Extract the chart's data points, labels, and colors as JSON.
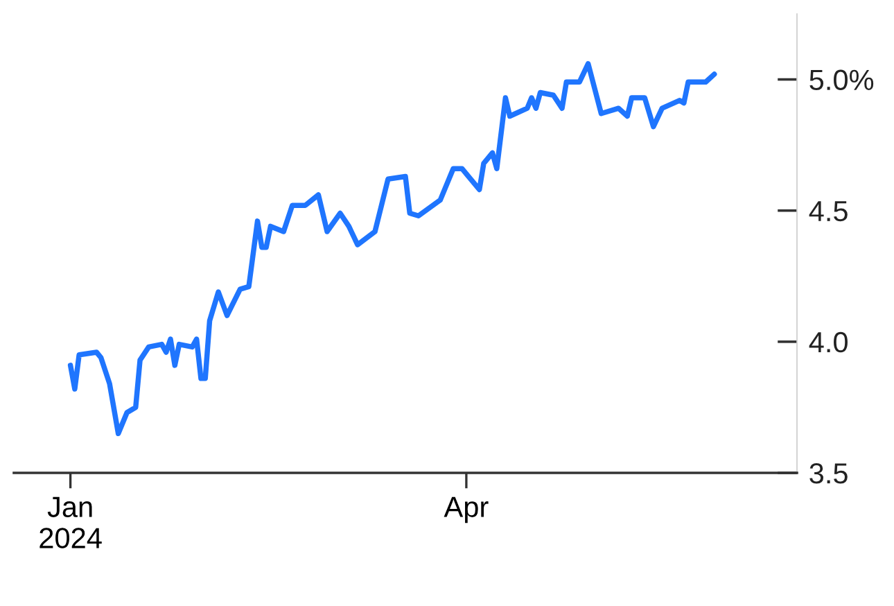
{
  "chart_data": {
    "type": "line",
    "x": [
      "2024-01-01",
      "2024-01-02",
      "2024-01-03",
      "2024-01-07",
      "2024-01-08",
      "2024-01-10",
      "2024-01-12",
      "2024-01-14",
      "2024-01-16",
      "2024-01-17",
      "2024-01-19",
      "2024-01-22",
      "2024-01-23",
      "2024-01-24",
      "2024-01-25",
      "2024-01-26",
      "2024-01-29",
      "2024-01-30",
      "2024-01-31",
      "2024-02-01",
      "2024-02-02",
      "2024-02-04",
      "2024-02-06",
      "2024-02-09",
      "2024-02-11",
      "2024-02-13",
      "2024-02-14",
      "2024-02-15",
      "2024-02-16",
      "2024-02-19",
      "2024-02-21",
      "2024-02-24",
      "2024-02-27",
      "2024-02-29",
      "2024-03-03",
      "2024-03-05",
      "2024-03-07",
      "2024-03-11",
      "2024-03-14",
      "2024-03-18",
      "2024-03-19",
      "2024-03-21",
      "2024-03-26",
      "2024-03-29",
      "2024-03-31",
      "2024-04-04",
      "2024-04-05",
      "2024-04-07",
      "2024-04-08",
      "2024-04-10",
      "2024-04-11",
      "2024-04-15",
      "2024-04-16",
      "2024-04-17",
      "2024-04-18",
      "2024-04-21",
      "2024-04-23",
      "2024-04-24",
      "2024-04-27",
      "2024-04-29",
      "2024-05-02",
      "2024-05-06",
      "2024-05-08",
      "2024-05-09",
      "2024-05-12",
      "2024-05-14",
      "2024-05-16",
      "2024-05-20",
      "2024-05-21",
      "2024-05-22",
      "2024-05-26",
      "2024-05-28"
    ],
    "series": [
      {
        "color": "#1f75fe",
        "values": [
          3.91,
          3.82,
          3.95,
          3.96,
          3.94,
          3.84,
          3.65,
          3.73,
          3.75,
          3.93,
          3.98,
          3.99,
          3.96,
          4.01,
          3.91,
          3.99,
          3.98,
          4.01,
          3.86,
          3.86,
          4.08,
          4.19,
          4.1,
          4.2,
          4.21,
          4.46,
          4.36,
          4.36,
          4.44,
          4.42,
          4.52,
          4.52,
          4.56,
          4.42,
          4.49,
          4.44,
          4.37,
          4.42,
          4.62,
          4.63,
          4.49,
          4.48,
          4.54,
          4.66,
          4.66,
          4.58,
          4.68,
          4.72,
          4.66,
          4.93,
          4.86,
          4.89,
          4.93,
          4.89,
          4.95,
          4.94,
          4.89,
          4.99,
          4.99,
          5.06,
          4.87,
          4.89,
          4.86,
          4.93,
          4.93,
          4.82,
          4.89,
          4.92,
          4.91,
          4.99,
          4.99,
          5.02
        ]
      }
    ],
    "xlim": [
      "2023-12-19",
      "2024-06-16"
    ],
    "xticks": [
      {
        "value": "2024-01-01",
        "label": "Jan\n2024"
      },
      {
        "value": "2024-04-01",
        "label": "Apr"
      }
    ],
    "ylim": [
      3.5,
      5.25
    ],
    "yticks": [
      3.5,
      {
        "value": 4,
        "label": "4.0"
      },
      4.5,
      {
        "value": 5,
        "label": "5.0%"
      }
    ],
    "grid": false,
    "legend": false,
    "marker": "none",
    "line_style": "solid"
  }
}
